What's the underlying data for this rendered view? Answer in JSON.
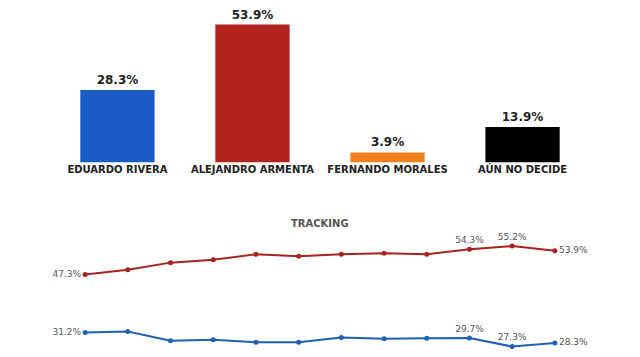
{
  "chart_data": [
    {
      "type": "bar",
      "categories": [
        "EDUARDO RIVERA",
        "ALEJANDRO ARMENTA",
        "FERNANDO MORALES",
        "AÚN NO DECIDE"
      ],
      "values": [
        28.3,
        53.9,
        3.9,
        13.9
      ],
      "value_labels": [
        "28.3%",
        "53.9%",
        "3.9%",
        "13.9%"
      ],
      "colors": [
        "#1a5bc4",
        "#b3231d",
        "#f2801c",
        "#000000"
      ],
      "ylim": [
        0,
        60
      ],
      "data_labels": true,
      "tick_labels": "x",
      "grid": false
    },
    {
      "type": "line",
      "title": "TRACKING",
      "categories": [
        null,
        null,
        null,
        null,
        null,
        null,
        null,
        null,
        null,
        null,
        null,
        null
      ],
      "series": [
        {
          "color": "#a8231d",
          "marker": "circle",
          "line_style": "solid",
          "values": [
            47.3,
            48.6,
            50.6,
            51.4,
            52.9,
            52.4,
            52.9,
            53.2,
            52.9,
            54.3,
            55.2,
            53.9
          ],
          "value_labels": [
            "47.3%",
            null,
            null,
            null,
            null,
            null,
            null,
            null,
            null,
            "54.3%",
            "55.2%",
            "53.9%"
          ]
        },
        {
          "color": "#1f5fb5",
          "marker": "circle",
          "line_style": "solid",
          "values": [
            31.2,
            31.5,
            28.9,
            29.2,
            28.5,
            28.5,
            29.8,
            29.5,
            29.6,
            29.7,
            27.3,
            28.3
          ],
          "value_labels": [
            "31.2%",
            null,
            null,
            null,
            null,
            null,
            null,
            null,
            null,
            "29.7%",
            "27.3%",
            "28.3%"
          ]
        }
      ],
      "ylim": [
        25,
        58
      ],
      "data_labels": true,
      "tick_labels": false,
      "grid": false
    }
  ]
}
